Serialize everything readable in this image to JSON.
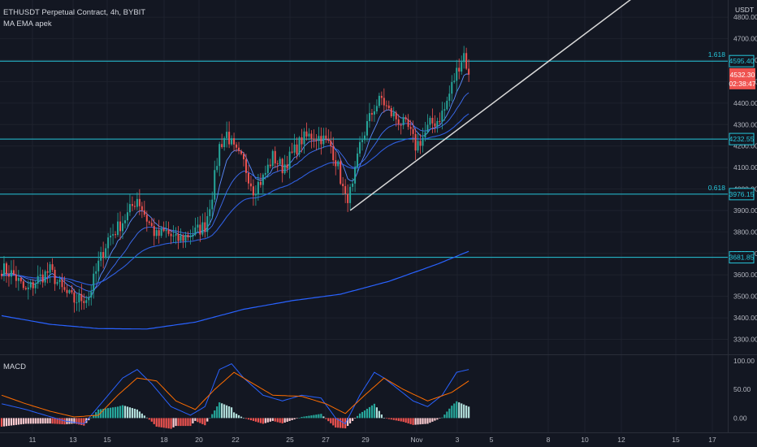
{
  "header": {
    "symbol_line": "ETHUSDT Perpetual Contract, 4h, BYBIT",
    "indicator_line": "MA EMA apek",
    "currency": "USDT",
    "macd_label": "MACD"
  },
  "colors": {
    "background": "#131722",
    "grid": "#1e222d",
    "up": "#26a69a",
    "down": "#ef5350",
    "level_line": "#26c6da",
    "trendline": "#d8d8d8",
    "ma": "#2962ff",
    "macd_line": "#2962ff",
    "signal_line": "#ff6d00"
  },
  "chart_data": [
    {
      "type": "candlestick",
      "x_ticks": [
        "11",
        "13",
        "15",
        "18",
        "20",
        "22",
        "25",
        "27",
        "29",
        "Nov",
        "3",
        "5",
        "8",
        "10",
        "12",
        "15",
        "17"
      ],
      "y_ticks": [
        4800,
        4700,
        4600,
        4500,
        4400,
        4300,
        4200,
        4100,
        4000,
        3900,
        3800,
        3700,
        3600,
        3500,
        3400,
        3300
      ],
      "y_range": [
        3230,
        4880
      ],
      "levels": [
        {
          "price": 4595.4,
          "label": "4595.40",
          "fib": "1.618"
        },
        {
          "price": 4232.55,
          "label": "4232.55",
          "fib": ""
        },
        {
          "price": 3976.15,
          "label": "3976.15",
          "fib": "0.618"
        },
        {
          "price": 3681.85,
          "label": "3681.85",
          "fib": ""
        }
      ],
      "last_price": {
        "price": 4532.3,
        "label": "4532.30",
        "countdown": "02:38:47"
      },
      "trendline": {
        "from": {
          "bar": 144,
          "price": 3900
        },
        "to": {
          "bar": 262,
          "price": 4900
        }
      },
      "price_waypoints": [
        {
          "bar": 0,
          "price": 3630
        },
        {
          "bar": 5,
          "price": 3600
        },
        {
          "bar": 10,
          "price": 3520
        },
        {
          "bar": 15,
          "price": 3580
        },
        {
          "bar": 20,
          "price": 3620
        },
        {
          "bar": 25,
          "price": 3530
        },
        {
          "bar": 30,
          "price": 3480
        },
        {
          "bar": 36,
          "price": 3500
        },
        {
          "bar": 40,
          "price": 3650
        },
        {
          "bar": 44,
          "price": 3770
        },
        {
          "bar": 48,
          "price": 3820
        },
        {
          "bar": 52,
          "price": 3880
        },
        {
          "bar": 56,
          "price": 3960
        },
        {
          "bar": 60,
          "price": 3860
        },
        {
          "bar": 64,
          "price": 3780
        },
        {
          "bar": 68,
          "price": 3800
        },
        {
          "bar": 72,
          "price": 3760
        },
        {
          "bar": 76,
          "price": 3780
        },
        {
          "bar": 80,
          "price": 3800
        },
        {
          "bar": 84,
          "price": 3830
        },
        {
          "bar": 87,
          "price": 3980
        },
        {
          "bar": 90,
          "price": 4200
        },
        {
          "bar": 93,
          "price": 4260
        },
        {
          "bar": 96,
          "price": 4180
        },
        {
          "bar": 100,
          "price": 4120
        },
        {
          "bar": 104,
          "price": 4000
        },
        {
          "bar": 108,
          "price": 4050
        },
        {
          "bar": 112,
          "price": 4150
        },
        {
          "bar": 116,
          "price": 4100
        },
        {
          "bar": 120,
          "price": 4160
        },
        {
          "bar": 124,
          "price": 4230
        },
        {
          "bar": 128,
          "price": 4250
        },
        {
          "bar": 132,
          "price": 4240
        },
        {
          "bar": 136,
          "price": 4200
        },
        {
          "bar": 139,
          "price": 4100
        },
        {
          "bar": 142,
          "price": 3950
        },
        {
          "bar": 145,
          "price": 4000
        },
        {
          "bar": 148,
          "price": 4200
        },
        {
          "bar": 151,
          "price": 4300
        },
        {
          "bar": 154,
          "price": 4380
        },
        {
          "bar": 157,
          "price": 4420
        },
        {
          "bar": 160,
          "price": 4360
        },
        {
          "bar": 164,
          "price": 4320
        },
        {
          "bar": 168,
          "price": 4280
        },
        {
          "bar": 171,
          "price": 4200
        },
        {
          "bar": 174,
          "price": 4240
        },
        {
          "bar": 177,
          "price": 4300
        },
        {
          "bar": 180,
          "price": 4320
        },
        {
          "bar": 183,
          "price": 4370
        },
        {
          "bar": 186,
          "price": 4480
        },
        {
          "bar": 189,
          "price": 4580
        },
        {
          "bar": 191,
          "price": 4630
        },
        {
          "bar": 193,
          "price": 4532
        }
      ],
      "ma_slow": [
        {
          "bar": 0,
          "price": 3410
        },
        {
          "bar": 20,
          "price": 3370
        },
        {
          "bar": 40,
          "price": 3350
        },
        {
          "bar": 60,
          "price": 3348
        },
        {
          "bar": 80,
          "price": 3380
        },
        {
          "bar": 100,
          "price": 3440
        },
        {
          "bar": 120,
          "price": 3480
        },
        {
          "bar": 140,
          "price": 3510
        },
        {
          "bar": 160,
          "price": 3570
        },
        {
          "bar": 180,
          "price": 3650
        },
        {
          "bar": 193,
          "price": 3710
        }
      ]
    },
    {
      "type": "macd",
      "y_ticks": [
        "100.00",
        "50.00",
        "0.00"
      ],
      "y_range": [
        -25,
        110
      ],
      "macd": [
        {
          "bar": 0,
          "value": 25
        },
        {
          "bar": 10,
          "value": 15
        },
        {
          "bar": 18,
          "value": 5
        },
        {
          "bar": 26,
          "value": -5
        },
        {
          "bar": 34,
          "value": -10
        },
        {
          "bar": 42,
          "value": 30
        },
        {
          "bar": 50,
          "value": 70
        },
        {
          "bar": 56,
          "value": 85
        },
        {
          "bar": 62,
          "value": 60
        },
        {
          "bar": 70,
          "value": 20
        },
        {
          "bar": 78,
          "value": 5
        },
        {
          "bar": 84,
          "value": 20
        },
        {
          "bar": 90,
          "value": 85
        },
        {
          "bar": 95,
          "value": 95
        },
        {
          "bar": 100,
          "value": 70
        },
        {
          "bar": 108,
          "value": 40
        },
        {
          "bar": 116,
          "value": 30
        },
        {
          "bar": 124,
          "value": 40
        },
        {
          "bar": 132,
          "value": 35
        },
        {
          "bar": 138,
          "value": 0
        },
        {
          "bar": 142,
          "value": -10
        },
        {
          "bar": 148,
          "value": 40
        },
        {
          "bar": 154,
          "value": 80
        },
        {
          "bar": 158,
          "value": 70
        },
        {
          "bar": 164,
          "value": 50
        },
        {
          "bar": 170,
          "value": 30
        },
        {
          "bar": 176,
          "value": 20
        },
        {
          "bar": 182,
          "value": 40
        },
        {
          "bar": 188,
          "value": 80
        },
        {
          "bar": 193,
          "value": 85
        }
      ],
      "signal": [
        {
          "bar": 0,
          "value": 40
        },
        {
          "bar": 10,
          "value": 25
        },
        {
          "bar": 20,
          "value": 12
        },
        {
          "bar": 30,
          "value": 2
        },
        {
          "bar": 40,
          "value": 5
        },
        {
          "bar": 48,
          "value": 40
        },
        {
          "bar": 56,
          "value": 70
        },
        {
          "bar": 64,
          "value": 65
        },
        {
          "bar": 72,
          "value": 30
        },
        {
          "bar": 80,
          "value": 15
        },
        {
          "bar": 88,
          "value": 50
        },
        {
          "bar": 96,
          "value": 80
        },
        {
          "bar": 104,
          "value": 60
        },
        {
          "bar": 112,
          "value": 40
        },
        {
          "bar": 124,
          "value": 38
        },
        {
          "bar": 134,
          "value": 25
        },
        {
          "bar": 142,
          "value": 8
        },
        {
          "bar": 150,
          "value": 40
        },
        {
          "bar": 158,
          "value": 70
        },
        {
          "bar": 166,
          "value": 50
        },
        {
          "bar": 176,
          "value": 30
        },
        {
          "bar": 186,
          "value": 45
        },
        {
          "bar": 193,
          "value": 65
        }
      ]
    }
  ]
}
